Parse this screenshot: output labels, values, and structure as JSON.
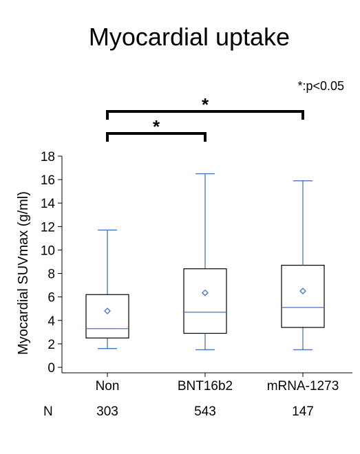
{
  "chart_data": {
    "type": "box",
    "title": "Myocardial uptake",
    "ylabel": "Myocardial SUVmax (g/ml)",
    "xlabel": "",
    "ylim": [
      0,
      18
    ],
    "yticks": [
      0,
      2,
      4,
      6,
      8,
      10,
      12,
      14,
      16,
      18
    ],
    "categories": [
      "Non",
      "BNT16b2",
      "mRNA-1273"
    ],
    "boxes": [
      {
        "category": "Non",
        "whisker_low": 1.6,
        "q1": 2.5,
        "median": 3.3,
        "q3": 6.2,
        "whisker_high": 11.7,
        "mean": 4.8
      },
      {
        "category": "BNT16b2",
        "whisker_low": 1.5,
        "q1": 2.9,
        "median": 4.7,
        "q3": 8.4,
        "whisker_high": 16.5,
        "mean": 6.35
      },
      {
        "category": "mRNA-1273",
        "whisker_low": 1.5,
        "q1": 3.4,
        "median": 5.1,
        "q3": 8.7,
        "whisker_high": 15.9,
        "mean": 6.5
      }
    ],
    "n_label": "N",
    "n_values": [
      "303",
      "543",
      "147"
    ],
    "significance_note": "*:p<0.05",
    "significance_brackets": [
      {
        "from": "Non",
        "to": "BNT16b2",
        "label": "*"
      },
      {
        "from": "Non",
        "to": "mRNA-1273",
        "label": "*"
      }
    ],
    "colors": {
      "whisker": "#4472C4",
      "box": "#000000",
      "median": "#4472C4",
      "mean": "#4472C4",
      "axis": "#000000"
    }
  }
}
